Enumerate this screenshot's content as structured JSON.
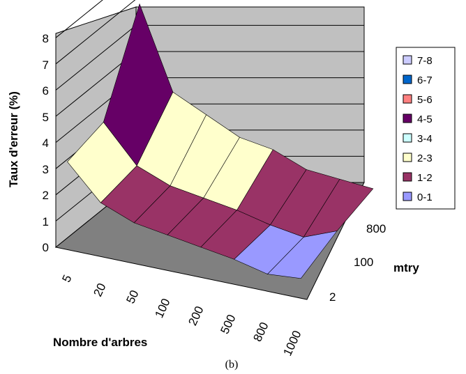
{
  "chart_data": {
    "type": "surface",
    "caption": "(b)",
    "xlabel": "Nombre d'arbres",
    "ylabel": "Taux d'erreur (%)",
    "zlabel": "mtry",
    "x_categories": [
      "5",
      "20",
      "50",
      "100",
      "200",
      "500",
      "800",
      "1000"
    ],
    "depth_categories": [
      "2",
      "100",
      "800"
    ],
    "y_ticks": [
      "0",
      "1",
      "2",
      "3",
      "4",
      "5",
      "6",
      "7",
      "8"
    ],
    "ylim": [
      0,
      8
    ],
    "grid": true,
    "legend_position": "right",
    "legend": [
      {
        "label": "7-8",
        "color": "#ccccff"
      },
      {
        "label": "6-7",
        "color": "#0066cc"
      },
      {
        "label": "5-6",
        "color": "#ff8080"
      },
      {
        "label": "4-5",
        "color": "#660066"
      },
      {
        "label": "3-4",
        "color": "#ccffff"
      },
      {
        "label": "2-3",
        "color": "#ffffcc"
      },
      {
        "label": "1-2",
        "color": "#993366"
      },
      {
        "label": "0-1",
        "color": "#9999ff"
      }
    ],
    "series": [
      {
        "name": "800",
        "values": [
          7.0,
          3.9,
          3.3,
          2.7,
          2.5,
          2.0,
          1.9,
          1.8
        ]
      },
      {
        "name": "100",
        "values": [
          3.6,
          2.2,
          1.7,
          1.5,
          1.3,
          1.0,
          0.8,
          1.3
        ]
      },
      {
        "name": "2",
        "values": [
          3.2,
          1.9,
          1.4,
          1.2,
          1.0,
          0.8,
          0.5,
          0.6
        ]
      }
    ]
  }
}
